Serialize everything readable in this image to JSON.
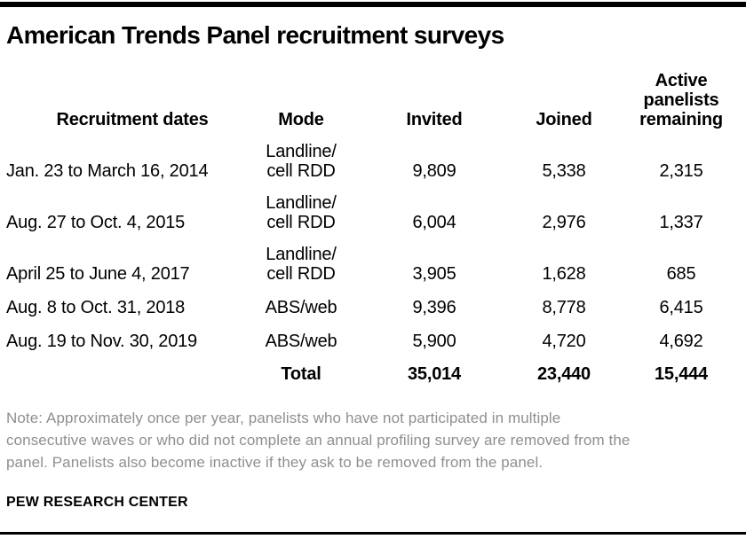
{
  "colors": {
    "rule_black": "#000000",
    "note_gray": "#8f8f8f",
    "background": "#ffffff"
  },
  "title": "American Trends Panel recruitment surveys",
  "table": {
    "headers": [
      "Recruitment dates",
      "Mode",
      "Invited",
      "Joined",
      "Active panelists remaining"
    ],
    "rows": [
      {
        "dates": "Jan. 23 to March 16, 2014",
        "mode": [
          "Landline/",
          "cell RDD"
        ],
        "invited": "9,809",
        "joined": "5,338",
        "remaining": "2,315"
      },
      {
        "dates": "Aug. 27 to Oct. 4, 2015",
        "mode": [
          "Landline/",
          "cell RDD"
        ],
        "invited": "6,004",
        "joined": "2,976",
        "remaining": "1,337"
      },
      {
        "dates": "April 25 to June 4, 2017",
        "mode": [
          "Landline/",
          "cell RDD"
        ],
        "invited": "3,905",
        "joined": "1,628",
        "remaining": "685"
      },
      {
        "dates": "Aug. 8 to Oct. 31, 2018",
        "mode": [
          "ABS/web"
        ],
        "invited": "9,396",
        "joined": "8,778",
        "remaining": "6,415"
      },
      {
        "dates": "Aug. 19 to Nov. 30, 2019",
        "mode": [
          "ABS/web"
        ],
        "invited": "5,900",
        "joined": "4,720",
        "remaining": "4,692"
      }
    ],
    "total": {
      "label": "Total",
      "invited": "35,014",
      "joined": "23,440",
      "remaining": "15,444"
    }
  },
  "note": {
    "lines": [
      "Note: Approximately once per year, panelists who have not participated in multiple",
      "consecutive waves or who did not complete an annual profiling survey are removed from the",
      "panel. Panelists also become inactive if they ask to be removed from the panel."
    ]
  },
  "source": "PEW RESEARCH CENTER",
  "chart_data": {
    "type": "table",
    "title": "American Trends Panel recruitment surveys",
    "columns": [
      "Recruitment dates",
      "Mode",
      "Invited",
      "Joined",
      "Active panelists remaining"
    ],
    "rows": [
      [
        "Jan. 23 to March 16, 2014",
        "Landline/cell RDD",
        9809,
        5338,
        2315
      ],
      [
        "Aug. 27 to Oct. 4, 2015",
        "Landline/cell RDD",
        6004,
        2976,
        1337
      ],
      [
        "April 25 to June 4, 2017",
        "Landline/cell RDD",
        3905,
        1628,
        685
      ],
      [
        "Aug. 8 to Oct. 31, 2018",
        "ABS/web",
        9396,
        8778,
        6415
      ],
      [
        "Aug. 19 to Nov. 30, 2019",
        "ABS/web",
        5900,
        4720,
        4692
      ]
    ],
    "total_row": [
      "",
      "Total",
      35014,
      23440,
      15444
    ],
    "note": "Note: Approximately once per year, panelists who have not participated in multiple consecutive waves or who did not complete an annual profiling survey are removed from the panel. Panelists also become inactive if they ask to be removed from the panel.",
    "source": "PEW RESEARCH CENTER"
  }
}
